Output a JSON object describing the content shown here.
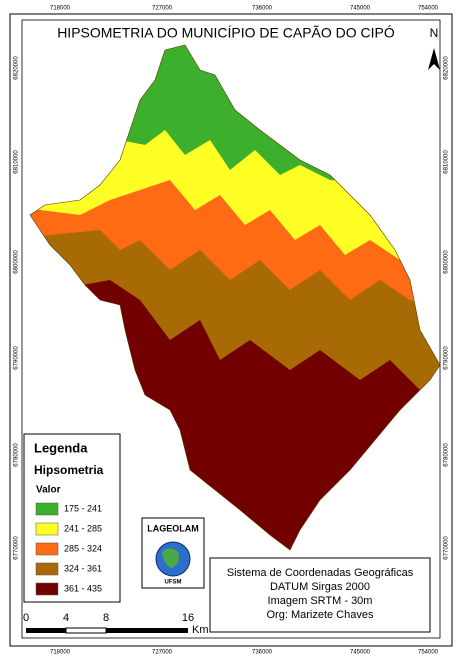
{
  "title": "HIPSOMETRIA DO MUNICÍPIO DE CAPÃO DO CIPÓ",
  "north": "N",
  "x_ticks": [
    "718000",
    "727000",
    "736000",
    "745000",
    "754000"
  ],
  "y_ticks": [
    "6820000",
    "6810000",
    "6800000",
    "6790000",
    "6780000",
    "6770000"
  ],
  "legend": {
    "title": "Legenda",
    "subtitle": "Hipsometria",
    "field": "Valor",
    "classes": [
      {
        "label": "175 - 241",
        "color": "#3cb02c"
      },
      {
        "label": "241 - 285",
        "color": "#ffff26"
      },
      {
        "label": "285 - 324",
        "color": "#ff6a14"
      },
      {
        "label": "324 - 361",
        "color": "#a86a05"
      },
      {
        "label": "361 - 435",
        "color": "#730000"
      }
    ]
  },
  "logo": {
    "name": "LAGEOLAM",
    "institution": "UFSM"
  },
  "info": [
    "Sistema de Coordenadas Geográficas",
    "DATUM Sirgas 2000",
    "Imagem SRTM - 30m",
    "Org: Marizete Chaves"
  ],
  "scale": {
    "labels": [
      "0",
      "4",
      "8",
      "16"
    ],
    "unit": "Km"
  }
}
